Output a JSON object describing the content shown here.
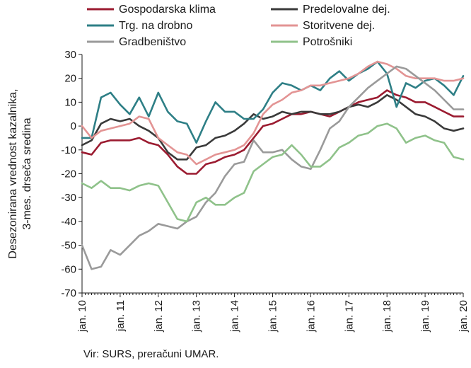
{
  "chart_data": {
    "type": "line",
    "ylabel_lines": [
      "Desezonirana vrednost kazalnika,",
      "3-mes. drseča sredina"
    ],
    "source": "Vir: SURS, preračuni UMAR.",
    "ylim": [
      -70,
      30
    ],
    "yticks": [
      30,
      20,
      10,
      0,
      -10,
      -20,
      -30,
      -40,
      -50,
      -60,
      -70
    ],
    "x_labels": [
      "jan. 10",
      "jan. 11",
      "jan. 12",
      "jan. 13",
      "jan. 14",
      "jan. 15",
      "jan. 16",
      "jan. 17",
      "jan. 18",
      "jan. 19",
      "jan. 20"
    ],
    "grid": "none",
    "legend_position": "top",
    "series": [
      {
        "name": "Gospodarska klima",
        "color": "#9b1b30",
        "x": [
          0,
          3,
          6,
          9,
          12,
          15,
          18,
          21,
          24,
          27,
          30,
          33,
          36,
          39,
          42,
          45,
          48,
          51,
          54,
          57,
          60,
          63,
          66,
          69,
          72,
          75,
          78,
          81,
          84,
          87,
          90,
          93,
          96,
          99,
          102,
          105,
          108,
          111,
          114,
          117,
          120
        ],
        "y": [
          -11,
          -12,
          -7,
          -6,
          -6,
          -6,
          -5,
          -7,
          -8,
          -12,
          -17,
          -20,
          -20,
          -16,
          -15,
          -13,
          -12,
          -10,
          -5,
          0,
          1,
          3,
          5,
          5,
          6,
          5,
          4,
          6,
          8,
          10,
          11,
          12,
          15,
          13,
          12,
          10,
          10,
          8,
          6,
          4,
          4
        ]
      },
      {
        "name": "Predelovalne dej.",
        "color": "#3a3a3a",
        "x": [
          0,
          3,
          6,
          9,
          12,
          15,
          18,
          21,
          24,
          27,
          30,
          33,
          36,
          39,
          42,
          45,
          48,
          51,
          54,
          57,
          60,
          63,
          66,
          69,
          72,
          75,
          78,
          81,
          84,
          87,
          90,
          93,
          96,
          99,
          102,
          105,
          108,
          111,
          114,
          117,
          120
        ],
        "y": [
          -8,
          -6,
          1,
          3,
          2,
          3,
          0,
          -2,
          -5,
          -11,
          -14,
          -14,
          -9,
          -8,
          -5,
          -4,
          -2,
          1,
          5,
          3,
          4,
          6,
          5,
          6,
          6,
          5,
          5,
          6,
          8,
          9,
          8,
          10,
          13,
          11,
          8,
          5,
          4,
          2,
          -1,
          -2,
          -1
        ]
      },
      {
        "name": "Trg. na drobno",
        "color": "#2e7f86",
        "x": [
          0,
          3,
          6,
          9,
          12,
          15,
          18,
          21,
          24,
          27,
          30,
          33,
          36,
          39,
          42,
          45,
          48,
          51,
          54,
          57,
          60,
          63,
          66,
          69,
          72,
          75,
          78,
          81,
          84,
          87,
          90,
          93,
          96,
          99,
          102,
          105,
          108,
          111,
          114,
          117,
          120
        ],
        "y": [
          -5,
          -5,
          12,
          14,
          9,
          5,
          12,
          4,
          14,
          6,
          2,
          1,
          -7,
          2,
          10,
          6,
          6,
          3,
          3,
          7,
          14,
          18,
          17,
          15,
          17,
          15,
          20,
          23,
          19,
          22,
          24,
          27,
          22,
          8,
          18,
          16,
          19,
          20,
          17,
          13,
          21
        ]
      },
      {
        "name": "Storitvene dej.",
        "color": "#e39494",
        "x": [
          0,
          3,
          6,
          9,
          12,
          15,
          18,
          21,
          24,
          27,
          30,
          33,
          36,
          39,
          42,
          45,
          48,
          51,
          54,
          57,
          60,
          63,
          66,
          69,
          72,
          75,
          78,
          81,
          84,
          87,
          90,
          93,
          96,
          99,
          102,
          105,
          108,
          111,
          114,
          117,
          120
        ],
        "y": [
          0,
          -5,
          -2,
          -1,
          0,
          1,
          4,
          3,
          -5,
          -8,
          -11,
          -12,
          -16,
          -14,
          -12,
          -11,
          -10,
          -8,
          -3,
          5,
          9,
          11,
          14,
          15,
          17,
          17,
          18,
          19,
          20,
          22,
          25,
          27,
          26,
          24,
          21,
          20,
          20,
          20,
          19,
          19,
          20
        ]
      },
      {
        "name": "Gradbeništvo",
        "color": "#9a9a9a",
        "x": [
          0,
          3,
          6,
          9,
          12,
          15,
          18,
          21,
          24,
          27,
          30,
          33,
          36,
          39,
          42,
          45,
          48,
          51,
          54,
          57,
          60,
          63,
          66,
          69,
          72,
          75,
          78,
          81,
          84,
          87,
          90,
          93,
          96,
          99,
          102,
          105,
          108,
          111,
          114,
          117,
          120
        ],
        "y": [
          -50,
          -60,
          -59,
          -52,
          -54,
          -50,
          -46,
          -44,
          -41,
          -42,
          -43,
          -40,
          -38,
          -32,
          -28,
          -21,
          -16,
          -15,
          -6,
          -11,
          -11,
          -10,
          -14,
          -17,
          -18,
          -10,
          -1,
          2,
          8,
          12,
          16,
          19,
          22,
          25,
          24,
          21,
          18,
          15,
          11,
          7,
          7
        ]
      },
      {
        "name": "Potrošniki",
        "color": "#8fc28a",
        "x": [
          0,
          3,
          6,
          9,
          12,
          15,
          18,
          21,
          24,
          27,
          30,
          33,
          36,
          39,
          42,
          45,
          48,
          51,
          54,
          57,
          60,
          63,
          66,
          69,
          72,
          75,
          78,
          81,
          84,
          87,
          90,
          93,
          96,
          99,
          102,
          105,
          108,
          111,
          114,
          117,
          120
        ],
        "y": [
          -24,
          -26,
          -23,
          -26,
          -26,
          -27,
          -25,
          -24,
          -25,
          -32,
          -39,
          -40,
          -32,
          -30,
          -33,
          -33,
          -30,
          -28,
          -19,
          -16,
          -13,
          -12,
          -8,
          -12,
          -17,
          -17,
          -14,
          -9,
          -7,
          -4,
          -3,
          0,
          1,
          -1,
          -7,
          -5,
          -4,
          -6,
          -7,
          -13,
          -14
        ]
      }
    ]
  }
}
